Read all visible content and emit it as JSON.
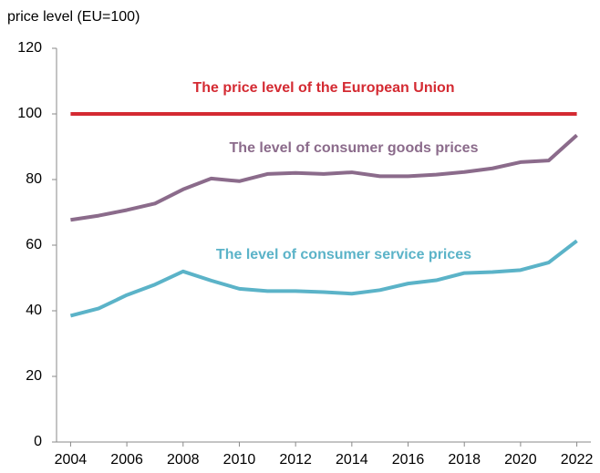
{
  "chart_data": {
    "type": "line",
    "y_axis_label": "price level (EU=100)",
    "x": [
      2004,
      2005,
      2006,
      2007,
      2008,
      2009,
      2010,
      2011,
      2012,
      2013,
      2014,
      2015,
      2016,
      2017,
      2018,
      2019,
      2020,
      2021,
      2022
    ],
    "series": [
      {
        "name": "The price level of the European Union",
        "color": "#d42a32",
        "values": [
          100,
          100,
          100,
          100,
          100,
          100,
          100,
          100,
          100,
          100,
          100,
          100,
          100,
          100,
          100,
          100,
          100,
          100,
          100
        ]
      },
      {
        "name": "The level of consumer goods prices",
        "color": "#8b6b8b",
        "values": [
          67.7,
          69,
          70.7,
          72.7,
          77,
          80.3,
          79.5,
          81.7,
          82,
          81.7,
          82.2,
          81,
          81,
          81.5,
          82.3,
          83.4,
          85.3,
          85.8,
          93.5
        ]
      },
      {
        "name": "The level of consumer service prices",
        "color": "#5bb3c8",
        "values": [
          38.5,
          40.7,
          44.8,
          48,
          52,
          49.2,
          46.7,
          46,
          46,
          45.7,
          45.2,
          46.3,
          48.3,
          49.3,
          51.5,
          51.8,
          52.4,
          54.7,
          61.3
        ]
      }
    ],
    "xlim": [
      2003.5,
      2022.5
    ],
    "xticks": [
      2004,
      2006,
      2008,
      2010,
      2012,
      2014,
      2016,
      2018,
      2020,
      2022
    ],
    "ylim": [
      0,
      120
    ],
    "yticks": [
      0,
      20,
      40,
      60,
      80,
      100,
      120
    ],
    "grid": false
  }
}
